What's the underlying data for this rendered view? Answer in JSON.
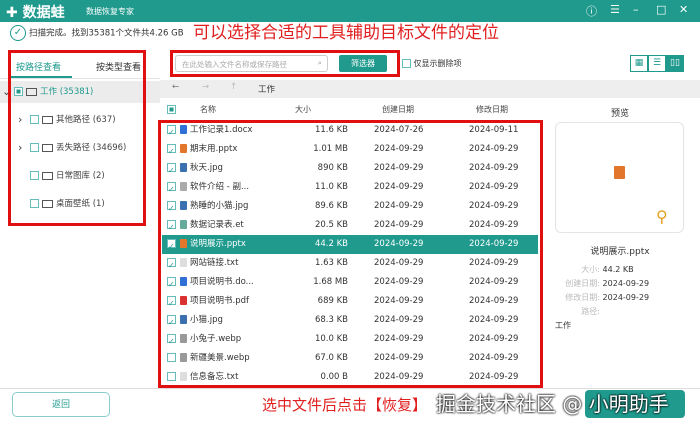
{
  "header": {
    "logo": "数据蛙",
    "subtitle": "数据恢复专家",
    "icons": [
      "help-icon",
      "menu-icon",
      "minimize-icon",
      "maximize-icon",
      "close-icon"
    ]
  },
  "status": "扫描完成。找到35381个文件共4.26 GB",
  "left": {
    "tabs": [
      "按路径查看",
      "按类型查看"
    ],
    "tree": [
      {
        "label": "工作 (35381)",
        "level": 0,
        "expanded": true
      },
      {
        "label": "其他路径 (637)",
        "level": 1
      },
      {
        "label": "丢失路径 (34696)",
        "level": 1
      },
      {
        "label": "日常图库 (2)",
        "level": 1
      },
      {
        "label": "桌面壁纸 (1)",
        "level": 1
      }
    ]
  },
  "toolbar": {
    "search_placeholder": "在此处输入文件名称或保存路径",
    "filter_label": "筛选器",
    "deleted_only_label": "仅显示删除项"
  },
  "nav": {
    "path": "工作"
  },
  "columns": [
    "名称",
    "大小",
    "创建日期",
    "修改日期"
  ],
  "files": [
    {
      "name": "工作记录1.docx",
      "size": "11.6 KB",
      "created": "2024-07-26",
      "modified": "2024-09-11",
      "checked": true,
      "color": "#2f6fd6"
    },
    {
      "name": "期末用.pptx",
      "size": "1.01 MB",
      "created": "2024-09-29",
      "modified": "2024-09-29",
      "checked": true,
      "color": "#e2762b"
    },
    {
      "name": "秋天.jpg",
      "size": "890 KB",
      "created": "2024-09-29",
      "modified": "2024-09-29",
      "checked": true,
      "color": "#3a6fb0"
    },
    {
      "name": "软件介绍 - 副...",
      "size": "11.0 KB",
      "created": "2024-09-29",
      "modified": "2024-09-29",
      "checked": true,
      "color": "#aaaaaa"
    },
    {
      "name": "熟睡的小猫.jpg",
      "size": "89.6 KB",
      "created": "2024-09-29",
      "modified": "2024-09-29",
      "checked": true,
      "color": "#3a6fb0"
    },
    {
      "name": "数据记录表.et",
      "size": "20.5 KB",
      "created": "2024-09-29",
      "modified": "2024-09-29",
      "checked": true,
      "color": "#6a9"
    },
    {
      "name": "说明展示.pptx",
      "size": "44.2 KB",
      "created": "2024-09-29",
      "modified": "2024-09-29",
      "checked": true,
      "color": "#e2762b",
      "selected": true
    },
    {
      "name": "网站链接.txt",
      "size": "1.63 KB",
      "created": "2024-09-29",
      "modified": "2024-09-29",
      "checked": true,
      "color": "#dddddd"
    },
    {
      "name": "项目说明书.do...",
      "size": "1.68 MB",
      "created": "2024-09-29",
      "modified": "2024-09-29",
      "checked": true,
      "color": "#2f6fd6"
    },
    {
      "name": "项目说明书.pdf",
      "size": "689 KB",
      "created": "2024-09-29",
      "modified": "2024-09-29",
      "checked": true,
      "color": "#d93030"
    },
    {
      "name": "小猫.jpg",
      "size": "68.3 KB",
      "created": "2024-09-29",
      "modified": "2024-09-29",
      "checked": true,
      "color": "#3a6fb0"
    },
    {
      "name": "小兔子.webp",
      "size": "10.0 KB",
      "created": "2024-09-29",
      "modified": "2024-09-29",
      "checked": true,
      "color": "#999999"
    },
    {
      "name": "新疆美景.webp",
      "size": "67.0 KB",
      "created": "2024-09-29",
      "modified": "2024-09-29",
      "checked": false,
      "color": "#999999"
    },
    {
      "name": "信息备忘.txt",
      "size": "0.00  B",
      "created": "2024-09-29",
      "modified": "2024-09-29",
      "checked": false,
      "color": "#dddddd"
    }
  ],
  "preview": {
    "title": "预览",
    "filename": "说明展示.pptx",
    "labels": {
      "size": "大小:",
      "created": "创建日期:",
      "modified": "修改日期:",
      "path": "路径:"
    },
    "size": "44.2 KB",
    "created": "2024-09-29",
    "modified": "2024-09-29",
    "path": "工作"
  },
  "footer": {
    "back_label": "返回"
  },
  "annotations": {
    "top": "可以选择合适的工具辅助目标文件的定位",
    "bottom": "选中文件后点击【恢复】",
    "watermark": "掘金技术社区 @ 小明助手"
  },
  "colors": {
    "accent": "#1f9a8d",
    "annotation": "#e01010"
  }
}
